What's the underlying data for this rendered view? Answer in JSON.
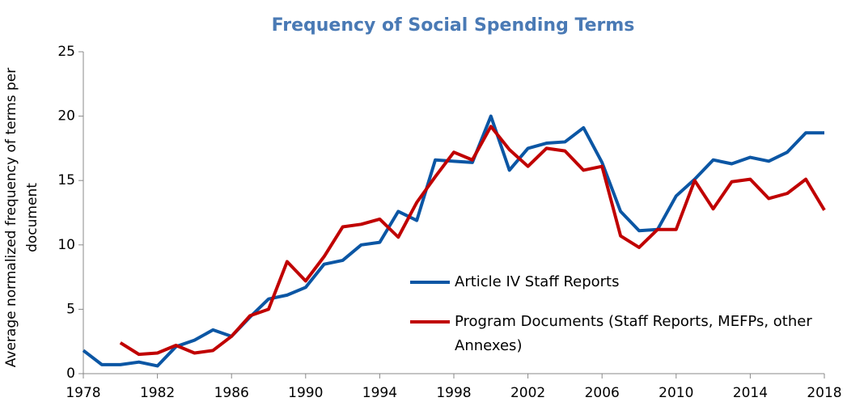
{
  "chart_data": {
    "type": "line",
    "title": "Frequency of Social Spending Terms",
    "y_label": "Average normalized frequency of terms per document",
    "x": [
      1978,
      1979,
      1980,
      1981,
      1982,
      1983,
      1984,
      1985,
      1986,
      1987,
      1988,
      1989,
      1990,
      1991,
      1992,
      1993,
      1994,
      1995,
      1996,
      1997,
      1998,
      1999,
      2000,
      2001,
      2002,
      2003,
      2004,
      2005,
      2006,
      2007,
      2008,
      2009,
      2010,
      2011,
      2012,
      2013,
      2014,
      2015,
      2016,
      2017,
      2018
    ],
    "series": [
      {
        "name": "Article IV Staff Reports",
        "color": "#0b56a4",
        "values": [
          1.8,
          0.7,
          0.7,
          0.9,
          0.6,
          2.1,
          2.6,
          3.4,
          2.9,
          4.4,
          5.8,
          6.1,
          6.7,
          8.5,
          8.8,
          10.0,
          10.2,
          12.6,
          11.9,
          16.6,
          16.5,
          16.4,
          20.0,
          15.8,
          17.5,
          17.9,
          18.0,
          19.1,
          16.4,
          12.6,
          11.1,
          11.2,
          13.8,
          15.1,
          16.6,
          16.3,
          16.8,
          16.5,
          17.2,
          18.7,
          18.7
        ]
      },
      {
        "name": "Program Documents (Staff Reports, MEFPs, other Annexes)",
        "color": "#c00000",
        "values": [
          null,
          null,
          2.4,
          1.5,
          1.6,
          2.2,
          1.6,
          1.8,
          2.9,
          4.5,
          5.0,
          8.7,
          7.2,
          9.1,
          11.4,
          11.6,
          12.0,
          10.6,
          13.3,
          15.3,
          17.2,
          16.6,
          19.2,
          17.4,
          16.1,
          17.5,
          17.3,
          15.8,
          16.1,
          10.7,
          9.8,
          11.2,
          11.2,
          15.0,
          12.8,
          14.9,
          15.1,
          13.6,
          14.0,
          15.1,
          12.7
        ]
      }
    ],
    "xlim": [
      1978,
      2018
    ],
    "xticks": [
      1978,
      1982,
      1986,
      1990,
      1994,
      1998,
      2002,
      2006,
      2010,
      2014,
      2018
    ],
    "ylim": [
      0,
      25
    ],
    "yticks": [
      0,
      5,
      10,
      15,
      20,
      25
    ],
    "grid": false
  }
}
